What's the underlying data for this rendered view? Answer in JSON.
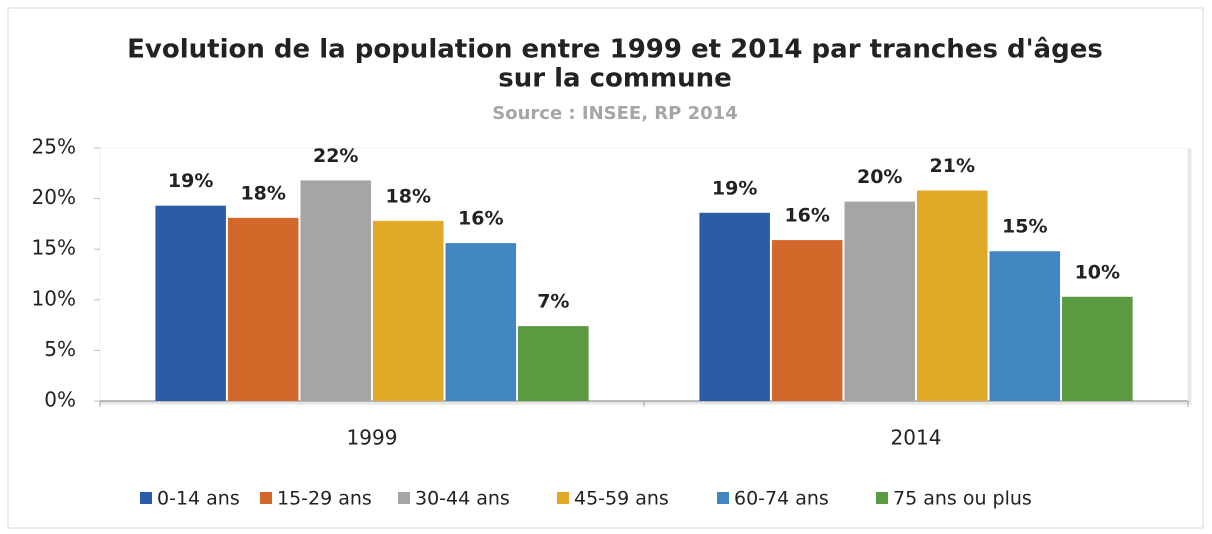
{
  "chart_data": {
    "type": "bar",
    "title": [
      "Evolution de la population entre 1999 et 2014 par tranches d'âges",
      "sur la commune"
    ],
    "subtitle": "Source : INSEE, RP 2014",
    "categories": [
      "1999",
      "2014"
    ],
    "series": [
      {
        "name": "0-14 ans",
        "color": "#2a5ca8",
        "values": [
          19.3,
          18.6
        ],
        "value_labels": [
          "19%",
          "19%"
        ]
      },
      {
        "name": "15-29 ans",
        "color": "#d2692a",
        "values": [
          18.1,
          15.9
        ],
        "value_labels": [
          "18%",
          "16%"
        ]
      },
      {
        "name": "30-44 ans",
        "color": "#a5a5a5",
        "values": [
          21.8,
          19.7
        ],
        "value_labels": [
          "22%",
          "20%"
        ]
      },
      {
        "name": "45-59 ans",
        "color": "#e0a928",
        "values": [
          17.8,
          20.8
        ],
        "value_labels": [
          "18%",
          "21%"
        ]
      },
      {
        "name": "60-74 ans",
        "color": "#4287c2",
        "values": [
          15.6,
          14.8
        ],
        "value_labels": [
          "16%",
          "15%"
        ]
      },
      {
        "name": "75 ans ou plus",
        "color": "#5a9a40",
        "values": [
          7.4,
          10.3
        ],
        "value_labels": [
          "7%",
          "10%"
        ]
      }
    ],
    "ylim": [
      0,
      25
    ],
    "yticks": [
      {
        "value": 0,
        "label": "0%"
      },
      {
        "value": 5,
        "label": "5%"
      },
      {
        "value": 10,
        "label": "10%"
      },
      {
        "value": 15,
        "label": "15%"
      },
      {
        "value": 20,
        "label": "20%"
      },
      {
        "value": 25,
        "label": "25%"
      }
    ],
    "legend": "bottom"
  }
}
